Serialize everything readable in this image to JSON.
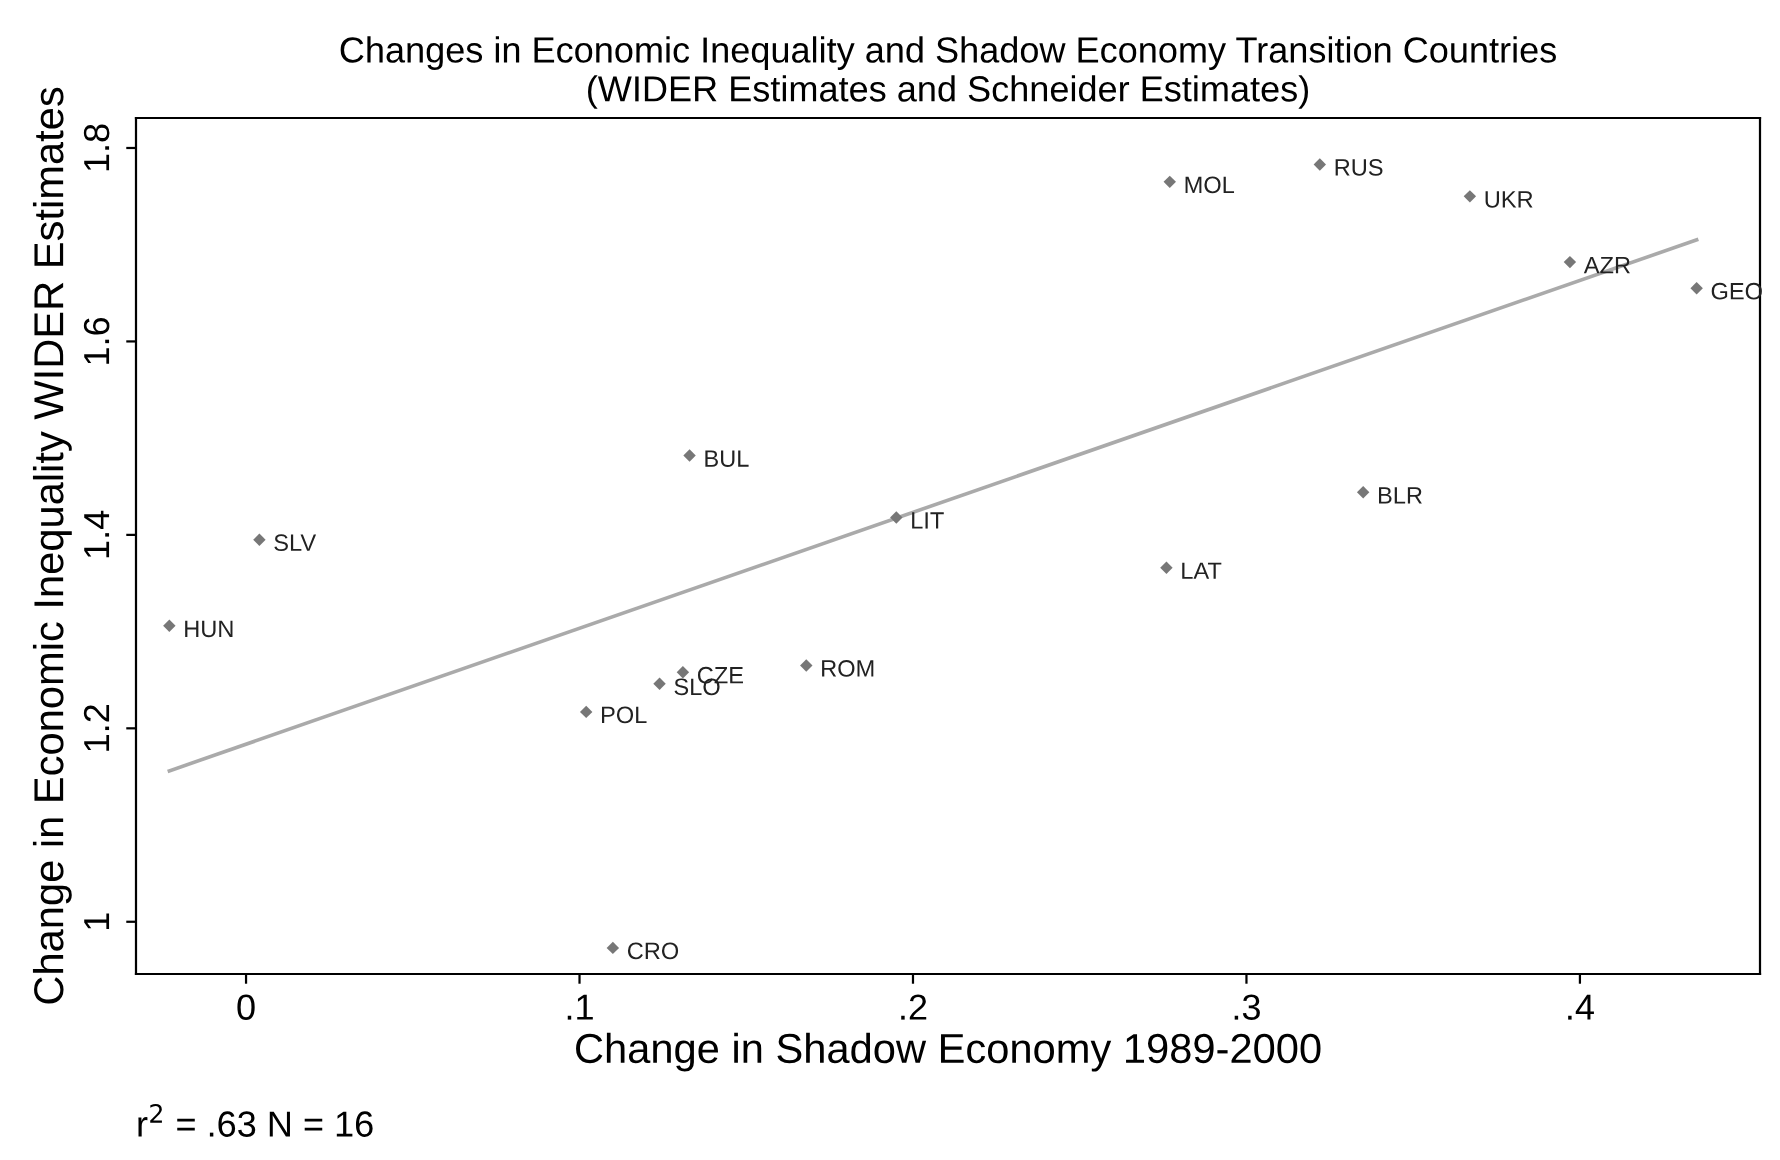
{
  "chart_data": {
    "type": "scatter",
    "title": "Changes in Economic Inequality and Shadow Economy Transition Countries\n(WIDER Estimates and Schneider Estimates)",
    "xlabel": "Change in Shadow Economy 1989-2000",
    "ylabel": "Change in Economic Inequality WIDER Estimates",
    "xlim": [
      -0.033,
      0.454
    ],
    "ylim": [
      0.946,
      1.831
    ],
    "xticks": [
      {
        "value": 0,
        "label": "0"
      },
      {
        "value": 0.1,
        "label": ".1"
      },
      {
        "value": 0.2,
        "label": ".2"
      },
      {
        "value": 0.3,
        "label": ".3"
      },
      {
        "value": 0.4,
        "label": ".4"
      }
    ],
    "yticks": [
      {
        "value": 1,
        "label": "1"
      },
      {
        "value": 1.2,
        "label": "1.2"
      },
      {
        "value": 1.4,
        "label": "1.4"
      },
      {
        "value": 1.6,
        "label": "1.6"
      },
      {
        "value": 1.8,
        "label": "1.8"
      }
    ],
    "grid": false,
    "series": [
      {
        "color": "#777777",
        "marker": "diamond",
        "x": [
          -0.023,
          0.004,
          0.102,
          0.124,
          0.131,
          0.11,
          0.133,
          0.168,
          0.195,
          0.276,
          0.277,
          0.322,
          0.335,
          0.367,
          0.397,
          0.435
        ],
        "values": [
          1.306,
          1.395,
          1.217,
          1.246,
          1.258,
          0.973,
          1.482,
          1.265,
          1.418,
          1.366,
          1.765,
          1.783,
          1.444,
          1.75,
          1.682,
          1.655
        ]
      },
      {
        "type": "line",
        "color": "#aaaaaa",
        "marker": "none",
        "line_style": "solid",
        "x": [
          -0.023,
          0.435
        ],
        "values": [
          1.156,
          1.705
        ]
      }
    ],
    "annotations": [
      {
        "text": "HUN",
        "x": -0.023,
        "y": 1.306
      },
      {
        "text": "SLV",
        "x": 0.004,
        "y": 1.395
      },
      {
        "text": "POL",
        "x": 0.102,
        "y": 1.217
      },
      {
        "text": "SLO",
        "x": 0.124,
        "y": 1.246
      },
      {
        "text": "CZE",
        "x": 0.131,
        "y": 1.258
      },
      {
        "text": "CRO",
        "x": 0.11,
        "y": 0.973
      },
      {
        "text": "BUL",
        "x": 0.133,
        "y": 1.482
      },
      {
        "text": "ROM",
        "x": 0.168,
        "y": 1.265
      },
      {
        "text": "LIT",
        "x": 0.195,
        "y": 1.418
      },
      {
        "text": "LAT",
        "x": 0.276,
        "y": 1.366
      },
      {
        "text": "MOL",
        "x": 0.277,
        "y": 1.765
      },
      {
        "text": "RUS",
        "x": 0.322,
        "y": 1.783
      },
      {
        "text": "BLR",
        "x": 0.335,
        "y": 1.444
      },
      {
        "text": "UKR",
        "x": 0.367,
        "y": 1.75
      },
      {
        "text": "AZR",
        "x": 0.397,
        "y": 1.682
      },
      {
        "text": "GEO",
        "x": 0.435,
        "y": 1.655
      },
      "r$^{2}$ = .63 N = 16"
    ]
  }
}
